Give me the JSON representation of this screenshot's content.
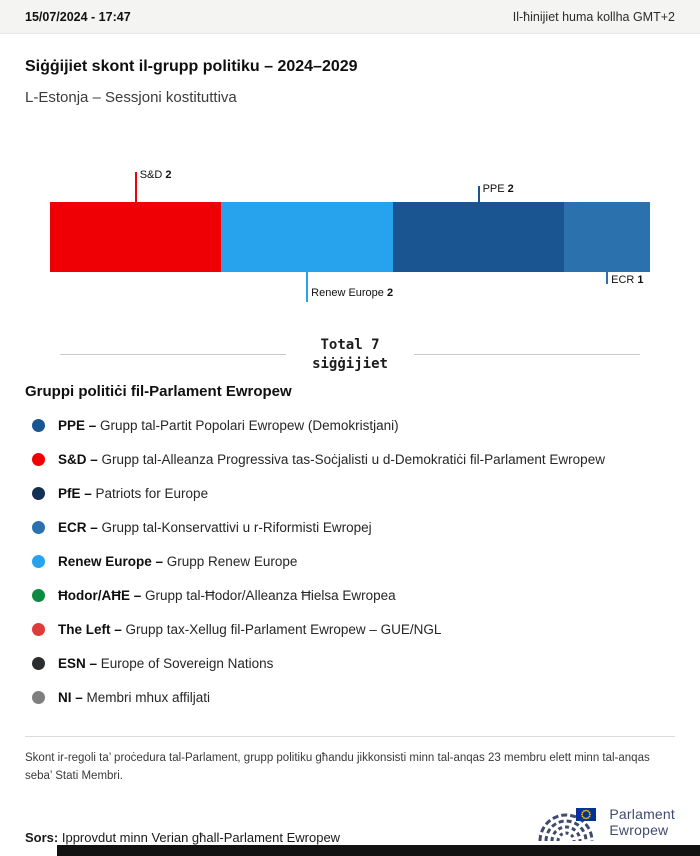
{
  "header": {
    "datetime": "15/07/2024 - 17:47",
    "timezone_note": "Il-ħinijiet huma kollha GMT+2"
  },
  "title": "Siġġijiet skont il-grupp politiku – 2024–2029",
  "subtitle": "L-Estonja – Sessjoni kostituttiva",
  "chart_data": {
    "type": "bar",
    "orientation": "horizontal-stacked",
    "title": "Siġġijiet skont il-grupp politiku – 2024–2029",
    "subtitle": "L-Estonja – Sessjoni kostituttiva",
    "total": 7,
    "total_line1": "Total 7",
    "total_line2": "siġġijiet",
    "segments": [
      {
        "name": "S&D",
        "value": 2,
        "color": "#ee0005",
        "callout": {
          "side": "top",
          "tick": 30
        }
      },
      {
        "name": "Renew Europe",
        "value": 2,
        "color": "#27a3ee",
        "callout": {
          "side": "bottom",
          "tick": 30
        }
      },
      {
        "name": "PPE",
        "value": 2,
        "color": "#1a5592",
        "callout": {
          "side": "top",
          "tick": 16
        }
      },
      {
        "name": "ECR",
        "value": 1,
        "color": "#2a71ad",
        "callout": {
          "side": "bottom",
          "tick": 12
        }
      }
    ]
  },
  "legend": {
    "heading": "Gruppi politiċi fil-Parlament Ewropew",
    "items": [
      {
        "abbr": "PPE",
        "desc": "Grupp tal-Partit Popolari Ewropew (Demokristjani)",
        "color": "#1a5592"
      },
      {
        "abbr": "S&D",
        "desc": "Grupp tal-Alleanza Progressiva tas-Soċjalisti u d-Demokratiċi fil-Parlament Ewropew",
        "color": "#ee0005"
      },
      {
        "abbr": "PfE",
        "desc": "Patriots for Europe",
        "color": "#142f54"
      },
      {
        "abbr": "ECR",
        "desc": "Grupp tal-Konservattivi u r-Riformisti Ewropej",
        "color": "#2a71ad"
      },
      {
        "abbr": "Renew Europe",
        "desc": "Grupp Renew Europe",
        "color": "#27a3ee"
      },
      {
        "abbr": "Ħodor/AĦE",
        "desc": "Grupp tal-Ħodor/Alleanza Ħielsa Ewropea",
        "color": "#0c8a3f"
      },
      {
        "abbr": "The Left",
        "desc": "Grupp tax-Xellug fil-Parlament Ewropew – GUE/NGL",
        "color": "#de3b3b"
      },
      {
        "abbr": "ESN",
        "desc": "Europe of Sovereign Nations",
        "color": "#2b2e31"
      },
      {
        "abbr": "NI",
        "desc": "Membri mhux affiljati",
        "color": "#7f7f7f"
      }
    ]
  },
  "footnote": "Skont ir-regoli ta’ proċedura tal-Parlament, grupp politiku għandu jikkonsisti minn tal-anqas 23 membru elett minn tal-anqas seba’ Stati Membri.",
  "source": {
    "label": "Sors:",
    "text": "Ipprovdut minn Verian għall-Parlament Ewropew"
  },
  "logo": {
    "line1": "Parlament",
    "line2": "Ewropew"
  }
}
